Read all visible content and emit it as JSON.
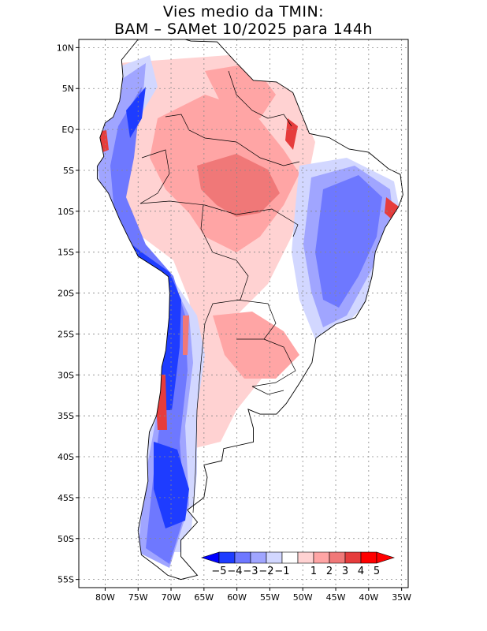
{
  "title": {
    "line1": "Vies medio da TMIN:",
    "line2": "BAM – SAMet 10/2025  para 144h"
  },
  "map": {
    "region": "South America",
    "lon_range": [
      -84,
      -34
    ],
    "lat_range": [
      -56,
      11
    ],
    "lon_ticks": [
      {
        "lon": -80,
        "label": "80W"
      },
      {
        "lon": -75,
        "label": "75W"
      },
      {
        "lon": -70,
        "label": "70W"
      },
      {
        "lon": -65,
        "label": "65W"
      },
      {
        "lon": -60,
        "label": "60W"
      },
      {
        "lon": -55,
        "label": "55W"
      },
      {
        "lon": -50,
        "label": "50W"
      },
      {
        "lon": -45,
        "label": "45W"
      },
      {
        "lon": -40,
        "label": "40W"
      },
      {
        "lon": -35,
        "label": "35W"
      }
    ],
    "lat_ticks": [
      {
        "lat": 10,
        "label": "10N"
      },
      {
        "lat": 5,
        "label": "5N"
      },
      {
        "lat": 0,
        "label": "EQ"
      },
      {
        "lat": -5,
        "label": "5S"
      },
      {
        "lat": -10,
        "label": "10S"
      },
      {
        "lat": -15,
        "label": "15S"
      },
      {
        "lat": -20,
        "label": "20S"
      },
      {
        "lat": -25,
        "label": "25S"
      },
      {
        "lat": -30,
        "label": "30S"
      },
      {
        "lat": -35,
        "label": "35S"
      },
      {
        "lat": -40,
        "label": "40S"
      },
      {
        "lat": -45,
        "label": "45S"
      },
      {
        "lat": -50,
        "label": "50S"
      },
      {
        "lat": -55,
        "label": "55S"
      }
    ]
  },
  "colorbar": {
    "labels": [
      "−5",
      "−4",
      "−3",
      "−2",
      "−1",
      "1",
      "2",
      "3",
      "4",
      "5"
    ],
    "colors": [
      "#1e3cff",
      "#6e78ff",
      "#a0a5ff",
      "#d2d7ff",
      "#ffffff",
      "#ffd2d2",
      "#ffa5a5",
      "#f07878",
      "#e63c3c",
      "#ff0000"
    ],
    "low_arrow_color": "#0000ff",
    "high_arrow_color": "#ff0000"
  },
  "colors": {
    "strong_blue": "#1e3cff",
    "mid_blue": "#6e78ff",
    "light_blue": "#a0a5ff",
    "pale_blue": "#d2d7ff",
    "pale_red": "#ffd2d2",
    "light_red": "#ffa5a5",
    "mid_red": "#f07878",
    "strong_red": "#e63c3c"
  }
}
